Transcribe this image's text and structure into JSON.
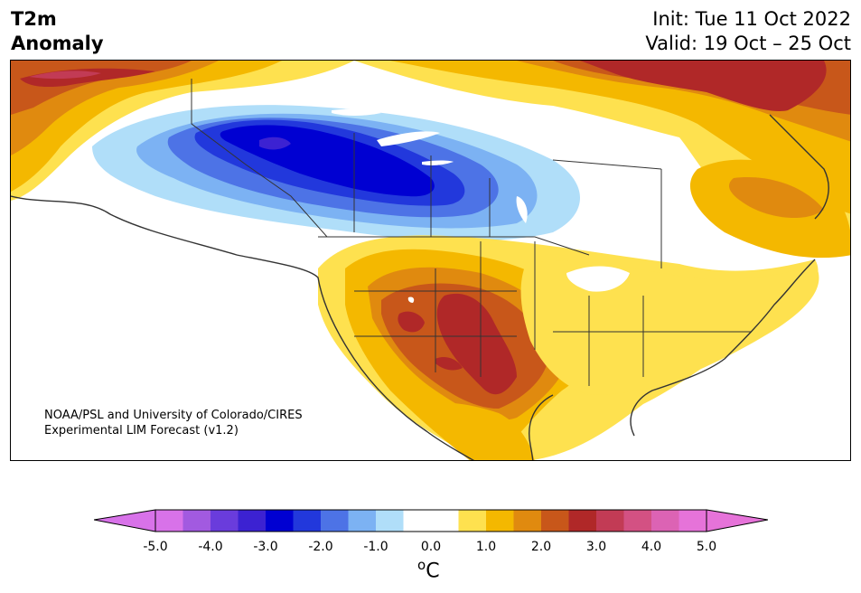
{
  "header": {
    "title_line1": "T2m",
    "title_line2": "Anomaly",
    "init_line": "Init: Tue 11 Oct 2022",
    "valid_line": "Valid: 19 Oct – 25 Oct"
  },
  "credit": {
    "line1": "NOAA/PSL and University of Colorado/CIRES",
    "line2": "Experimental LIM Forecast (v1.2)"
  },
  "colorbar": {
    "unit_base": "C",
    "unit_sup": "o",
    "tick_labels": [
      "-5.0",
      "-4.0",
      "-3.0",
      "-2.0",
      "-1.0",
      "0.0",
      "1.0",
      "2.0",
      "3.0",
      "4.0",
      "5.0"
    ],
    "bins": [
      "#d872e9",
      "#a25ae0",
      "#6a3cdc",
      "#3c22d2",
      "#0000d2",
      "#2238dc",
      "#4d73e6",
      "#7cb2f3",
      "#b0def9",
      "#ffffff",
      "#ffffff",
      "#fee14f",
      "#f4b800",
      "#e08a0f",
      "#c8571a",
      "#b02828",
      "#c23b55",
      "#d35183",
      "#dc63b4",
      "#e673d9"
    ],
    "extend_low": "#d872e9",
    "extend_high": "#e673d9"
  },
  "map": {
    "region": "North America",
    "variable": "2m temperature anomaly",
    "features": [
      "coastlines",
      "country borders",
      "state/province borders",
      "lakes"
    ]
  }
}
